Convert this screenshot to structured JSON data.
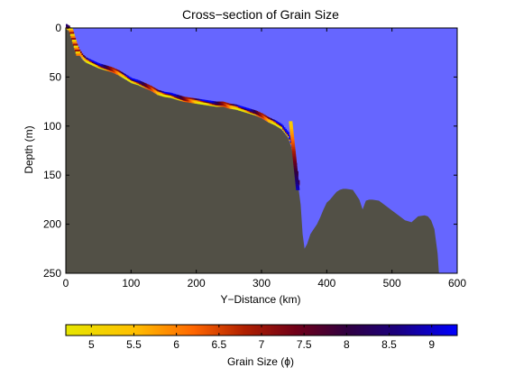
{
  "chart_data": {
    "type": "area",
    "title": "Cross−section of Grain Size",
    "xlabel": "Y−Distance (km)",
    "ylabel": "Depth (m)",
    "xlim": [
      0,
      600
    ],
    "ylim": [
      0,
      250
    ],
    "y_axis_reversed": true,
    "xticks": [
      0,
      100,
      200,
      300,
      400,
      500,
      600
    ],
    "yticks": [
      0,
      50,
      100,
      150,
      200,
      250
    ],
    "colors": {
      "water": "#6666ff",
      "seabed": "#525046",
      "frame": "#000000"
    },
    "seabed_profile": {
      "x": [
        0,
        5,
        10,
        15,
        20,
        25,
        30,
        40,
        50,
        60,
        70,
        80,
        90,
        100,
        110,
        120,
        130,
        140,
        150,
        160,
        170,
        180,
        190,
        200,
        210,
        220,
        230,
        240,
        250,
        260,
        270,
        280,
        290,
        300,
        310,
        320,
        330,
        340,
        345,
        350,
        355,
        360,
        363,
        366,
        370,
        375,
        380,
        385,
        390,
        395,
        400,
        405,
        410,
        415,
        420,
        425,
        430,
        440,
        450,
        455,
        460,
        465,
        470,
        480,
        490,
        500,
        510,
        520,
        530,
        540,
        550,
        555,
        560,
        565,
        570,
        572,
        575
      ],
      "y": [
        1,
        3,
        10,
        20,
        27,
        32,
        35,
        38,
        41,
        43,
        45,
        48,
        52,
        56,
        58,
        61,
        64,
        68,
        70,
        71,
        73,
        75,
        76,
        77,
        78,
        79,
        80,
        80,
        82,
        83,
        85,
        87,
        89,
        92,
        96,
        99,
        103,
        111,
        120,
        135,
        155,
        180,
        210,
        225,
        220,
        210,
        205,
        200,
        193,
        185,
        178,
        175,
        171,
        167,
        165,
        164,
        164,
        165,
        175,
        185,
        176,
        175,
        175,
        176,
        181,
        186,
        191,
        196,
        198,
        192,
        191,
        192,
        196,
        205,
        230,
        250,
        250
      ]
    },
    "grain_size_band": {
      "start_x": 0,
      "end_x": 357,
      "thickness_m": 5,
      "color_by_phi": true
    },
    "colorbar": {
      "label": "Grain Size (ϕ)",
      "range": [
        4.7,
        9.3
      ],
      "ticks": [
        "5",
        "5.5",
        "6",
        "6.5",
        "7",
        "7.5",
        "8",
        "8.5",
        "9"
      ],
      "tick_values": [
        5,
        5.5,
        6,
        6.5,
        7,
        7.5,
        8,
        8.5,
        9
      ],
      "gradient": [
        {
          "value": 4.7,
          "color": "#e6e600"
        },
        {
          "value": 5.5,
          "color": "#ffc000"
        },
        {
          "value": 6.2,
          "color": "#ff6600"
        },
        {
          "value": 6.8,
          "color": "#b01f00"
        },
        {
          "value": 7.4,
          "color": "#700018"
        },
        {
          "value": 8.0,
          "color": "#300040"
        },
        {
          "value": 8.6,
          "color": "#1a0080"
        },
        {
          "value": 9.3,
          "color": "#0000ff"
        }
      ]
    }
  }
}
